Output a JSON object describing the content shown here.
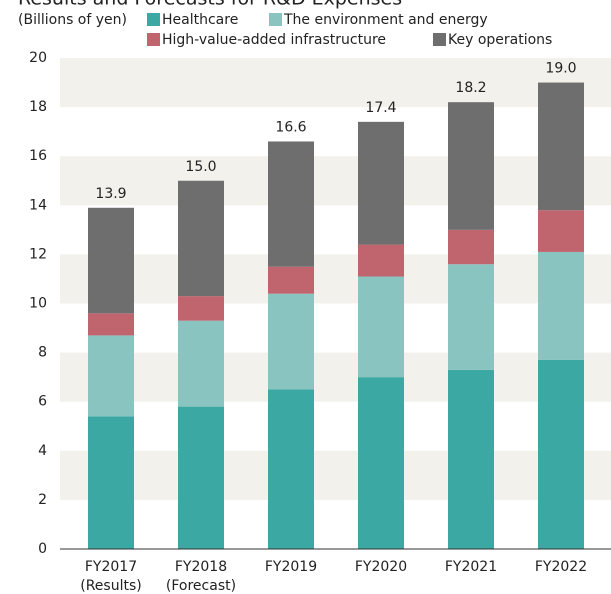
{
  "chart_data": {
    "type": "stacked_bar",
    "title": "Results and Forecasts for R&D Expenses",
    "y_label": "(Billions of yen)",
    "categories": [
      "FY2017",
      "FY2018",
      "FY2019",
      "FY2020",
      "FY2021",
      "FY2022"
    ],
    "category_notes": [
      "(Results)",
      "(Forecast)"
    ],
    "series": [
      {
        "name": "Healthcare",
        "color": "#3ba8a4",
        "values": [
          5.4,
          5.8,
          6.5,
          7.0,
          7.3,
          7.7
        ]
      },
      {
        "name": "The environment and energy",
        "color": "#8ac4c1",
        "values": [
          3.3,
          3.5,
          3.9,
          4.1,
          4.3,
          4.4
        ]
      },
      {
        "name": "High-value-added infrastructure",
        "color": "#c0646e",
        "values": [
          0.9,
          1.0,
          1.1,
          1.3,
          1.4,
          1.7
        ]
      },
      {
        "name": "Key operations",
        "color": "#6e6e6e",
        "values": [
          4.3,
          4.7,
          5.1,
          5.0,
          5.2,
          5.2
        ]
      }
    ],
    "totals": {
      "values": [
        13.9,
        15,
        16.6,
        17.4,
        18.2,
        19
      ],
      "value_labels": [
        "13.9",
        "15.0",
        "16.6",
        "17.4",
        "18.2",
        "19.0"
      ]
    },
    "ylim": [
      0,
      20
    ],
    "yticks": [
      0,
      2,
      4,
      6,
      8,
      10,
      12,
      14,
      16,
      18,
      20
    ],
    "grid": "bands"
  }
}
